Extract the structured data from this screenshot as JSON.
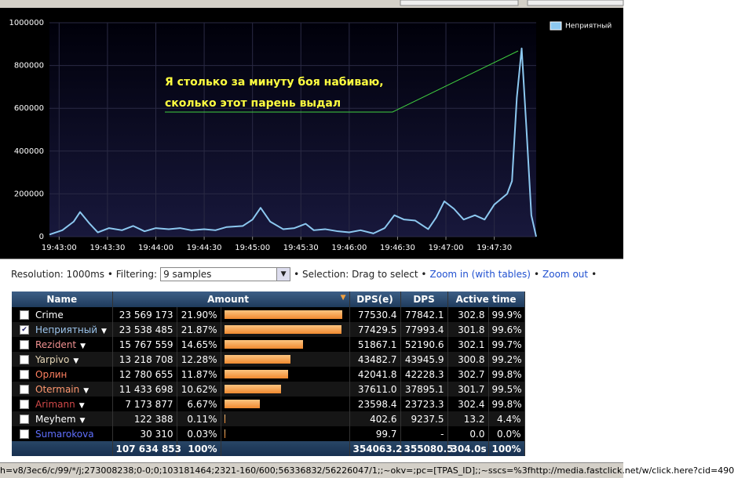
{
  "chart_data": {
    "type": "line",
    "annotation": [
      "Я столько за минуту боя набиваю,",
      "сколько этот парень выдал"
    ],
    "x": [
      "19:42:54",
      "19:43:02",
      "19:43:09",
      "19:43:13",
      "19:43:19",
      "19:43:24",
      "19:43:31",
      "19:43:39",
      "19:43:46",
      "19:43:53",
      "19:44:00",
      "19:44:08",
      "19:44:15",
      "19:44:22",
      "19:44:30",
      "19:44:37",
      "19:44:44",
      "19:44:54",
      "19:45:00",
      "19:45:05",
      "19:45:11",
      "19:45:19",
      "19:45:26",
      "19:45:33",
      "19:45:38",
      "19:45:45",
      "19:45:53",
      "19:46:00",
      "19:46:07",
      "19:46:15",
      "19:46:22",
      "19:46:28",
      "19:46:34",
      "19:46:41",
      "19:46:49",
      "19:46:54",
      "19:46:59",
      "19:47:05",
      "19:47:11",
      "19:47:18",
      "19:47:24",
      "19:47:30",
      "19:47:38",
      "19:47:41",
      "19:47:44",
      "19:47:47",
      "19:47:50",
      "19:47:53",
      "19:47:56"
    ],
    "series": [
      {
        "name": "Неприятный",
        "color": "#8cc8f0",
        "values": [
          10000,
          30000,
          70000,
          115000,
          60000,
          20000,
          40000,
          30000,
          50000,
          25000,
          40000,
          35000,
          40000,
          30000,
          35000,
          30000,
          45000,
          50000,
          80000,
          135000,
          70000,
          35000,
          40000,
          60000,
          30000,
          35000,
          25000,
          20000,
          30000,
          15000,
          40000,
          100000,
          80000,
          75000,
          35000,
          90000,
          165000,
          130000,
          80000,
          100000,
          80000,
          150000,
          200000,
          260000,
          650000,
          880000,
          500000,
          100000,
          0
        ]
      }
    ],
    "xlim": [
      "19:42:54",
      "19:47:56"
    ],
    "xticks": [
      "19:43:00",
      "19:43:30",
      "19:44:00",
      "19:44:30",
      "19:45:00",
      "19:45:30",
      "19:46:00",
      "19:46:30",
      "19:47:00",
      "19:47:30"
    ],
    "ylim": [
      0,
      1000000
    ],
    "yticks": [
      0,
      200000,
      400000,
      600000,
      800000,
      1000000
    ],
    "grid": true,
    "legend": "top-right"
  },
  "toolbar": {
    "resolution": "Resolution: 1000ms • Filtering:",
    "filter": "9 samples",
    "selection": "• Selection: Drag to select •",
    "zoom_in": "Zoom in (with tables)",
    "sep": "•",
    "zoom_out": "Zoom out",
    "end": "•"
  },
  "table": {
    "headers": [
      "Name",
      "Amount",
      "DPS(e)",
      "DPS",
      "Active time"
    ],
    "rows": [
      {
        "name": "Crime",
        "color": "#ffffff",
        "checked": false,
        "menu": false,
        "amount": "23 569 173",
        "pct": "21.90%",
        "dpse": "77530.4",
        "dps": "77842.1",
        "active": "302.8",
        "active_pct": "99.9%"
      },
      {
        "name": "Неприятный",
        "color": "#9cc4ec",
        "checked": true,
        "menu": true,
        "amount": "23 538 485",
        "pct": "21.87%",
        "dpse": "77429.5",
        "dps": "77993.4",
        "active": "301.8",
        "active_pct": "99.6%"
      },
      {
        "name": "Rezident",
        "color": "#f09090",
        "checked": false,
        "menu": true,
        "amount": "15 767 559",
        "pct": "14.65%",
        "dpse": "51867.1",
        "dps": "52190.6",
        "active": "302.1",
        "active_pct": "99.7%"
      },
      {
        "name": "Yarpivo",
        "color": "#e8d8b8",
        "checked": false,
        "menu": true,
        "amount": "13 218 708",
        "pct": "12.28%",
        "dpse": "43482.7",
        "dps": "43945.9",
        "active": "300.8",
        "active_pct": "99.2%"
      },
      {
        "name": "Орлин",
        "color": "#ff8060",
        "checked": false,
        "menu": false,
        "amount": "12 780 655",
        "pct": "11.87%",
        "dpse": "42041.8",
        "dps": "42228.3",
        "active": "302.7",
        "active_pct": "99.8%"
      },
      {
        "name": "Otermain",
        "color": "#ff9870",
        "checked": false,
        "menu": true,
        "amount": "11 433 698",
        "pct": "10.62%",
        "dpse": "37611.0",
        "dps": "37895.1",
        "active": "301.7",
        "active_pct": "99.5%"
      },
      {
        "name": "Arimann",
        "color": "#d04848",
        "checked": false,
        "menu": true,
        "amount": "7 173 877",
        "pct": "6.67%",
        "dpse": "23598.4",
        "dps": "23723.3",
        "active": "302.4",
        "active_pct": "99.8%"
      },
      {
        "name": "Meyhem",
        "color": "#ffffff",
        "checked": false,
        "menu": true,
        "amount": "122 388",
        "pct": "0.11%",
        "dpse": "402.6",
        "dps": "9237.5",
        "active": "13.2",
        "active_pct": "4.4%"
      },
      {
        "name": "Sumarokova",
        "color": "#6070ff",
        "checked": false,
        "menu": false,
        "amount": "30 310",
        "pct": "0.03%",
        "dpse": "99.7",
        "dps": "-",
        "active": "0.0",
        "active_pct": "0.0%"
      }
    ],
    "total": {
      "amount": "107 634 853",
      "pct": "100%",
      "dpse": "354063.2",
      "dps": "355080.5",
      "active": "304.0s",
      "active_pct": "100%"
    }
  },
  "status_bar": "h=v8/3ec6/c/99/*/j;273008238;0-0;0;103181464;2321-160/600;56336832/56226047/1;;~okv=;pc=[TPAS_ID];;~sscs=%3fhttp://media.fastclick.net/w/click.here?cid=490"
}
